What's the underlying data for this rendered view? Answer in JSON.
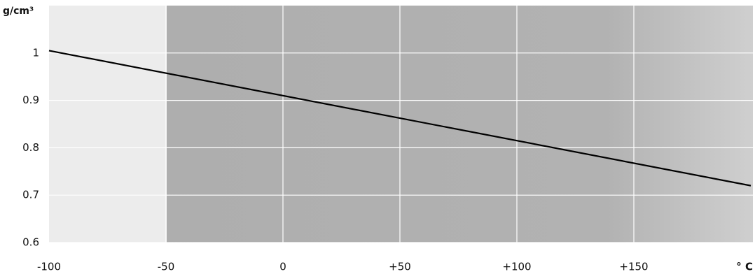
{
  "chart_data": {
    "type": "line",
    "y_label": "g/cm³",
    "x_label": "° C",
    "x": [
      -100,
      200
    ],
    "series": [
      {
        "color": "#000000",
        "values": [
          1.005,
          0.72
        ]
      }
    ],
    "xlim": [
      -100,
      200
    ],
    "xticks": [
      -100,
      -50,
      0,
      {
        "value": 50,
        "label": "+50"
      },
      {
        "value": 100,
        "label": "+100"
      },
      {
        "value": 150,
        "label": "+150"
      }
    ],
    "ylim": [
      0.6,
      1.1
    ],
    "yticks": [
      0.6,
      0.7,
      0.8,
      0.9,
      1
    ],
    "grid": true
  }
}
